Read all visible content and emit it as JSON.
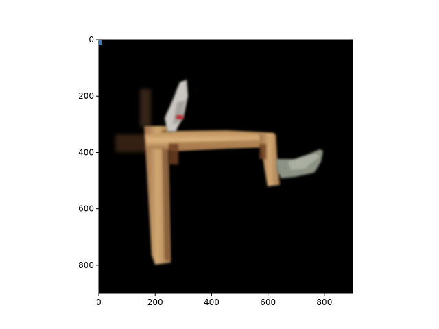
{
  "chart_data": {
    "type": "heatmap",
    "title": "",
    "xlabel": "",
    "ylabel": "",
    "xlim": [
      0,
      900
    ],
    "ylim": [
      900,
      0
    ],
    "y_inverted": true,
    "x_ticks": [
      0,
      200,
      400,
      600,
      800
    ],
    "y_ticks": [
      0,
      200,
      400,
      600,
      800
    ],
    "x_tick_labels": [
      "0",
      "200",
      "400",
      "600",
      "800"
    ],
    "y_tick_labels": [
      "0",
      "200",
      "400",
      "600",
      "800"
    ],
    "grid": false,
    "legend": "none",
    "background_color": "#000000",
    "content": "point-cloud render of a wooden table frame on black background",
    "colors": {
      "wood": "#c79a66",
      "wood_dark": "#8a5a36",
      "grey_object": "#8d9384",
      "white_object": "#e0dcd6",
      "red_accent": "#c0212a",
      "blue_accent": "#2e7fd0"
    }
  }
}
